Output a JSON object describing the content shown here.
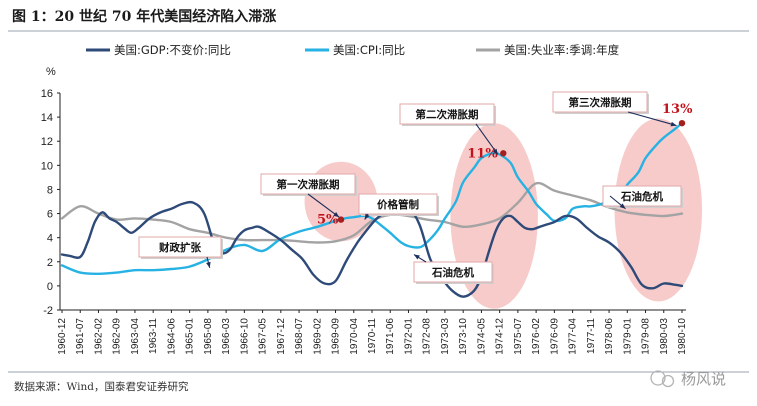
{
  "chart_data": {
    "type": "line",
    "title": "图 1：20 世纪 70 年代美国经济陷入滞涨",
    "ylabel": "%",
    "ylim": [
      -2,
      16
    ],
    "yticks": [
      "-2",
      "0",
      "2",
      "4",
      "6",
      "8",
      "10",
      "12",
      "14",
      "16"
    ],
    "x_tick_labels": [
      "1960-12",
      "1961-07",
      "1962-02",
      "1962-09",
      "1963-04",
      "1963-11",
      "1964-06",
      "1965-01",
      "1965-08",
      "1966-03",
      "1966-10",
      "1967-05",
      "1967-12",
      "1968-07",
      "1969-02",
      "1969-09",
      "1970-04",
      "1970-11",
      "1971-06",
      "1972-01",
      "1972-08",
      "1973-03",
      "1973-10",
      "1974-05",
      "1974-12",
      "1975-07",
      "1976-02",
      "1976-09",
      "1977-04",
      "1977-11",
      "1978-06",
      "1979-01",
      "1979-08",
      "1980-03",
      "1980-10"
    ],
    "grid": false,
    "legend_placement": "top",
    "series": [
      {
        "name": "美国:GDP:不变价:同比",
        "color": "#2e4a78",
        "x": [
          0,
          0.4,
          1.0,
          1.4,
          1.8,
          2.2,
          2.6,
          3.0,
          3.4,
          3.8,
          4.2,
          4.8,
          5.4,
          6.0,
          6.6,
          7.2,
          7.8,
          8.4,
          8.8,
          9.2,
          9.6,
          10.0,
          10.4,
          10.8,
          11.4,
          12.0,
          12.6,
          13.2,
          13.8,
          14.4,
          15.0,
          15.6,
          16.2,
          16.6,
          17.2,
          17.8,
          18.4,
          19.0,
          19.6,
          20.2,
          20.8,
          21.4,
          22.0,
          22.6,
          23.0,
          23.4,
          23.8,
          24.2,
          24.6,
          25.0,
          25.4,
          25.8,
          26.2,
          26.6,
          27.0,
          27.6,
          28.2,
          28.8,
          29.4,
          30.0,
          30.6,
          31.2,
          31.8,
          32.4,
          33.0,
          33.6,
          34.0
        ],
        "values": [
          2.6,
          2.5,
          2.4,
          3.6,
          5.3,
          6.1,
          5.6,
          5.3,
          4.8,
          4.4,
          4.8,
          5.6,
          6.1,
          6.4,
          6.8,
          6.9,
          6.0,
          3.2,
          2.7,
          3.0,
          4.0,
          4.6,
          4.8,
          4.9,
          4.4,
          3.8,
          3.0,
          2.2,
          0.9,
          0.2,
          0.4,
          2.1,
          3.6,
          4.4,
          5.5,
          6.2,
          6.6,
          6.5,
          5.1,
          2.2,
          0.7,
          -0.4,
          -0.9,
          -0.4,
          0.8,
          2.8,
          4.6,
          5.6,
          5.8,
          5.3,
          4.8,
          4.7,
          4.9,
          5.1,
          5.3,
          5.8,
          5.6,
          4.8,
          4.1,
          3.6,
          2.8,
          1.6,
          0.1,
          -0.2,
          0.2,
          0.1,
          0.0
        ]
      },
      {
        "name": "美国:CPI:同比",
        "color": "#27b2e4",
        "x": [
          0,
          1,
          2,
          3,
          4,
          5,
          6,
          7,
          8,
          9,
          10,
          11,
          12,
          13,
          14,
          15,
          15.5,
          16,
          16.6,
          17,
          17.6,
          18,
          18.6,
          19,
          19.6,
          20,
          20.6,
          21,
          21.6,
          22,
          22.6,
          23,
          23.6,
          24,
          24.6,
          25,
          25.6,
          26,
          26.6,
          27,
          27.6,
          28,
          28.6,
          29,
          29.6,
          30,
          30.6,
          31,
          31.6,
          32,
          32.6,
          33,
          33.6,
          34
        ],
        "values": [
          1.7,
          1.1,
          1.0,
          1.1,
          1.3,
          1.3,
          1.4,
          1.6,
          2.2,
          3.0,
          3.4,
          2.9,
          3.9,
          4.5,
          4.9,
          5.4,
          5.6,
          5.7,
          5.8,
          5.6,
          4.9,
          4.4,
          3.6,
          3.3,
          3.2,
          3.6,
          4.6,
          5.6,
          7.0,
          8.6,
          9.8,
          10.6,
          11.0,
          10.9,
          10.2,
          9.0,
          7.8,
          6.8,
          5.9,
          5.4,
          5.6,
          6.4,
          6.6,
          6.6,
          6.8,
          7.2,
          7.6,
          8.4,
          9.4,
          10.6,
          11.7,
          12.3,
          13.0,
          13.5
        ]
      },
      {
        "name": "美国:失业率:季调:年度",
        "color": "#a3a3a3",
        "x": [
          0,
          1,
          2,
          3,
          4,
          5,
          6,
          7,
          8,
          9,
          10,
          11,
          12,
          13,
          14,
          15,
          16,
          17,
          18,
          19,
          20,
          21,
          22,
          23,
          24,
          25,
          26,
          27,
          28,
          29,
          30,
          31,
          32,
          33,
          34
        ],
        "values": [
          5.6,
          6.6,
          6.0,
          5.5,
          5.6,
          5.5,
          5.3,
          4.7,
          4.4,
          4.0,
          3.8,
          3.8,
          3.8,
          3.7,
          3.6,
          3.7,
          4.2,
          5.4,
          5.9,
          5.8,
          5.5,
          5.3,
          4.9,
          5.1,
          5.6,
          6.9,
          8.5,
          7.9,
          7.5,
          7.1,
          6.5,
          6.1,
          5.9,
          5.8,
          6.0
        ]
      }
    ],
    "annotations": {
      "labels": {
        "crisis1": "第一次滞胀期",
        "crisis2": "第二次滞胀期",
        "crisis3": "第三次滞胀期",
        "fiscal": "财政扩张",
        "price": "价格管制",
        "oil1": "石油危机",
        "oil2": "石油危机",
        "p1": "5%",
        "p2": "11%",
        "p3": "13%"
      },
      "highlight_fill": "#f7c2c2",
      "peak_marker_color": "#a51f1f"
    },
    "source": "数据来源：Wind，国泰君安证券研究",
    "watermark": "杨风说"
  }
}
